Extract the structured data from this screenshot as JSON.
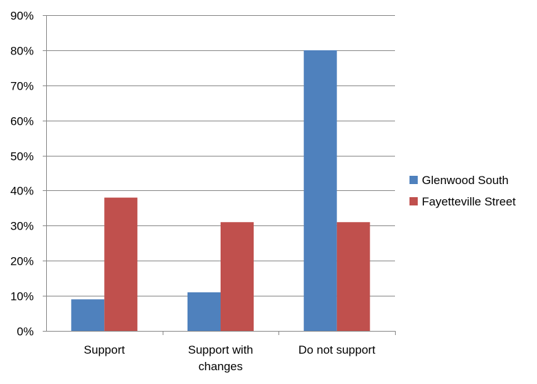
{
  "chart_data": {
    "type": "bar",
    "categories": [
      [
        "Support"
      ],
      [
        "Support with",
        "changes"
      ],
      [
        "Do not support"
      ]
    ],
    "series": [
      {
        "name": "Glenwood South",
        "color": "#4f81bd",
        "values": [
          9,
          11,
          80
        ]
      },
      {
        "name": "Fayetteville Street",
        "color": "#c0504d",
        "values": [
          38,
          31,
          31
        ]
      }
    ],
    "ylim": [
      0,
      90
    ],
    "yticks": [
      0,
      10,
      20,
      30,
      40,
      50,
      60,
      70,
      80,
      90
    ],
    "ytick_labels": [
      "0%",
      "10%",
      "20%",
      "30%",
      "40%",
      "50%",
      "60%",
      "70%",
      "80%",
      "90%"
    ],
    "grid": true,
    "legend_position": "right",
    "title": "",
    "xlabel": "",
    "ylabel": ""
  }
}
